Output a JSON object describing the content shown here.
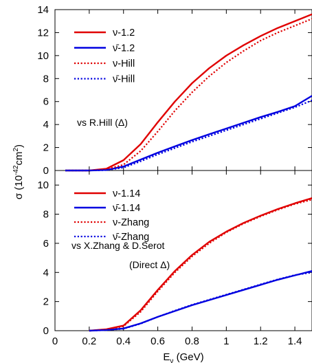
{
  "axes": {
    "ylabel_main": "σ (10",
    "ylabel_exp": "-42",
    "ylabel_tail": "cm",
    "ylabel_exp2": "2",
    "ylabel_close": ")",
    "xlabel_main": "E",
    "xlabel_sub": "ν",
    "xlabel_tail": " (GeV)"
  },
  "chart_data": [
    {
      "type": "line",
      "panel": "top",
      "xlim": [
        0,
        1.5
      ],
      "ylim": [
        0,
        14
      ],
      "grid": false,
      "legend_position": "top-left",
      "x_ticks": [
        "0",
        "0.2",
        "0.4",
        "0.6",
        "0.8",
        "1",
        "1.2",
        "1.4"
      ],
      "x_tick_values": [
        0,
        0.2,
        0.4,
        0.6,
        0.8,
        1.0,
        1.2,
        1.4
      ],
      "y_ticks": [
        "0",
        "2",
        "4",
        "6",
        "8",
        "10",
        "12",
        "14"
      ],
      "y_tick_values": [
        0,
        2,
        4,
        6,
        8,
        10,
        12,
        14
      ],
      "annotation": "vs R.Hill (Δ)",
      "series": [
        {
          "name": "ν-1.2",
          "color": "#e00000",
          "dash": "solid",
          "x": [
            0.06,
            0.2,
            0.3,
            0.4,
            0.5,
            0.6,
            0.7,
            0.8,
            0.9,
            1.0,
            1.1,
            1.2,
            1.3,
            1.4,
            1.5
          ],
          "y": [
            0,
            0,
            0.15,
            0.9,
            2.3,
            4.2,
            6.0,
            7.6,
            8.9,
            10.0,
            10.9,
            11.7,
            12.4,
            13.0,
            13.6
          ]
        },
        {
          "name": "ν̄-1.2",
          "color": "#0000e0",
          "dash": "solid",
          "x": [
            0.06,
            0.2,
            0.3,
            0.4,
            0.5,
            0.6,
            0.7,
            0.8,
            0.9,
            1.0,
            1.1,
            1.2,
            1.3,
            1.4,
            1.5
          ],
          "y": [
            0,
            0,
            0.05,
            0.35,
            0.95,
            1.55,
            2.1,
            2.65,
            3.15,
            3.65,
            4.15,
            4.65,
            5.1,
            5.6,
            6.5
          ]
        },
        {
          "name": "ν-Hill",
          "color": "#e00000",
          "dash": "dotted",
          "x": [
            0.06,
            0.2,
            0.3,
            0.4,
            0.5,
            0.6,
            0.7,
            0.8,
            0.9,
            1.0,
            1.1,
            1.2,
            1.3,
            1.4,
            1.5
          ],
          "y": [
            0,
            0,
            0.1,
            0.5,
            1.7,
            3.4,
            5.2,
            6.8,
            8.2,
            9.4,
            10.4,
            11.3,
            12.0,
            12.6,
            13.2
          ]
        },
        {
          "name": "ν̄-Hill",
          "color": "#0000e0",
          "dash": "dotted",
          "x": [
            0.06,
            0.2,
            0.3,
            0.4,
            0.5,
            0.6,
            0.7,
            0.8,
            0.9,
            1.0,
            1.1,
            1.2,
            1.3,
            1.4,
            1.5
          ],
          "y": [
            0,
            0,
            0.03,
            0.25,
            0.8,
            1.4,
            1.95,
            2.5,
            3.0,
            3.5,
            4.0,
            4.5,
            5.0,
            5.5,
            6.1
          ]
        }
      ]
    },
    {
      "type": "line",
      "panel": "bottom",
      "xlim": [
        0,
        1.5
      ],
      "ylim": [
        0,
        11
      ],
      "grid": false,
      "legend_position": "top-left",
      "x_ticks": [
        "0",
        "0.2",
        "0.4",
        "0.6",
        "0.8",
        "1",
        "1.2",
        "1.4"
      ],
      "x_tick_values": [
        0,
        0.2,
        0.4,
        0.6,
        0.8,
        1.0,
        1.2,
        1.4
      ],
      "y_ticks": [
        "0",
        "2",
        "4",
        "6",
        "8",
        "10"
      ],
      "y_tick_values": [
        0,
        2,
        4,
        6,
        8,
        10
      ],
      "annotation_line1": "vs X.Zhang & D.Serot",
      "annotation_line2": "(Direct Δ)",
      "series": [
        {
          "name": "ν-1.14",
          "color": "#e00000",
          "dash": "solid",
          "x": [
            0.2,
            0.3,
            0.4,
            0.5,
            0.6,
            0.7,
            0.8,
            0.9,
            1.0,
            1.1,
            1.2,
            1.3,
            1.4,
            1.5
          ],
          "y": [
            0,
            0.1,
            0.35,
            1.4,
            2.8,
            4.1,
            5.2,
            6.1,
            6.8,
            7.4,
            7.9,
            8.35,
            8.75,
            9.1
          ]
        },
        {
          "name": "ν̄-1.14",
          "color": "#0000e0",
          "dash": "solid",
          "x": [
            0.2,
            0.3,
            0.4,
            0.5,
            0.6,
            0.7,
            0.8,
            0.9,
            1.0,
            1.1,
            1.2,
            1.3,
            1.4,
            1.5
          ],
          "y": [
            0,
            0.05,
            0.15,
            0.5,
            0.95,
            1.35,
            1.75,
            2.1,
            2.45,
            2.8,
            3.15,
            3.5,
            3.8,
            4.1
          ]
        },
        {
          "name": "ν-Zhang",
          "color": "#e00000",
          "dash": "dotted",
          "x": [
            0.2,
            0.3,
            0.4,
            0.5,
            0.6,
            0.7,
            0.8,
            0.9,
            1.0,
            1.1,
            1.2,
            1.3,
            1.4,
            1.5
          ],
          "y": [
            0,
            0.08,
            0.3,
            1.3,
            2.7,
            4.0,
            5.1,
            6.0,
            6.75,
            7.35,
            7.85,
            8.3,
            8.7,
            9.0
          ]
        },
        {
          "name": "ν̄-Zhang",
          "color": "#0000e0",
          "dash": "dotted",
          "x": [
            0.2,
            0.3,
            0.4,
            0.5,
            0.6,
            0.7,
            0.8,
            0.9,
            1.0,
            1.1,
            1.2,
            1.3,
            1.4,
            1.5
          ],
          "y": [
            0,
            0.04,
            0.13,
            0.48,
            0.95,
            1.38,
            1.78,
            2.13,
            2.48,
            2.83,
            3.18,
            3.52,
            3.82,
            4.0
          ]
        }
      ]
    }
  ]
}
